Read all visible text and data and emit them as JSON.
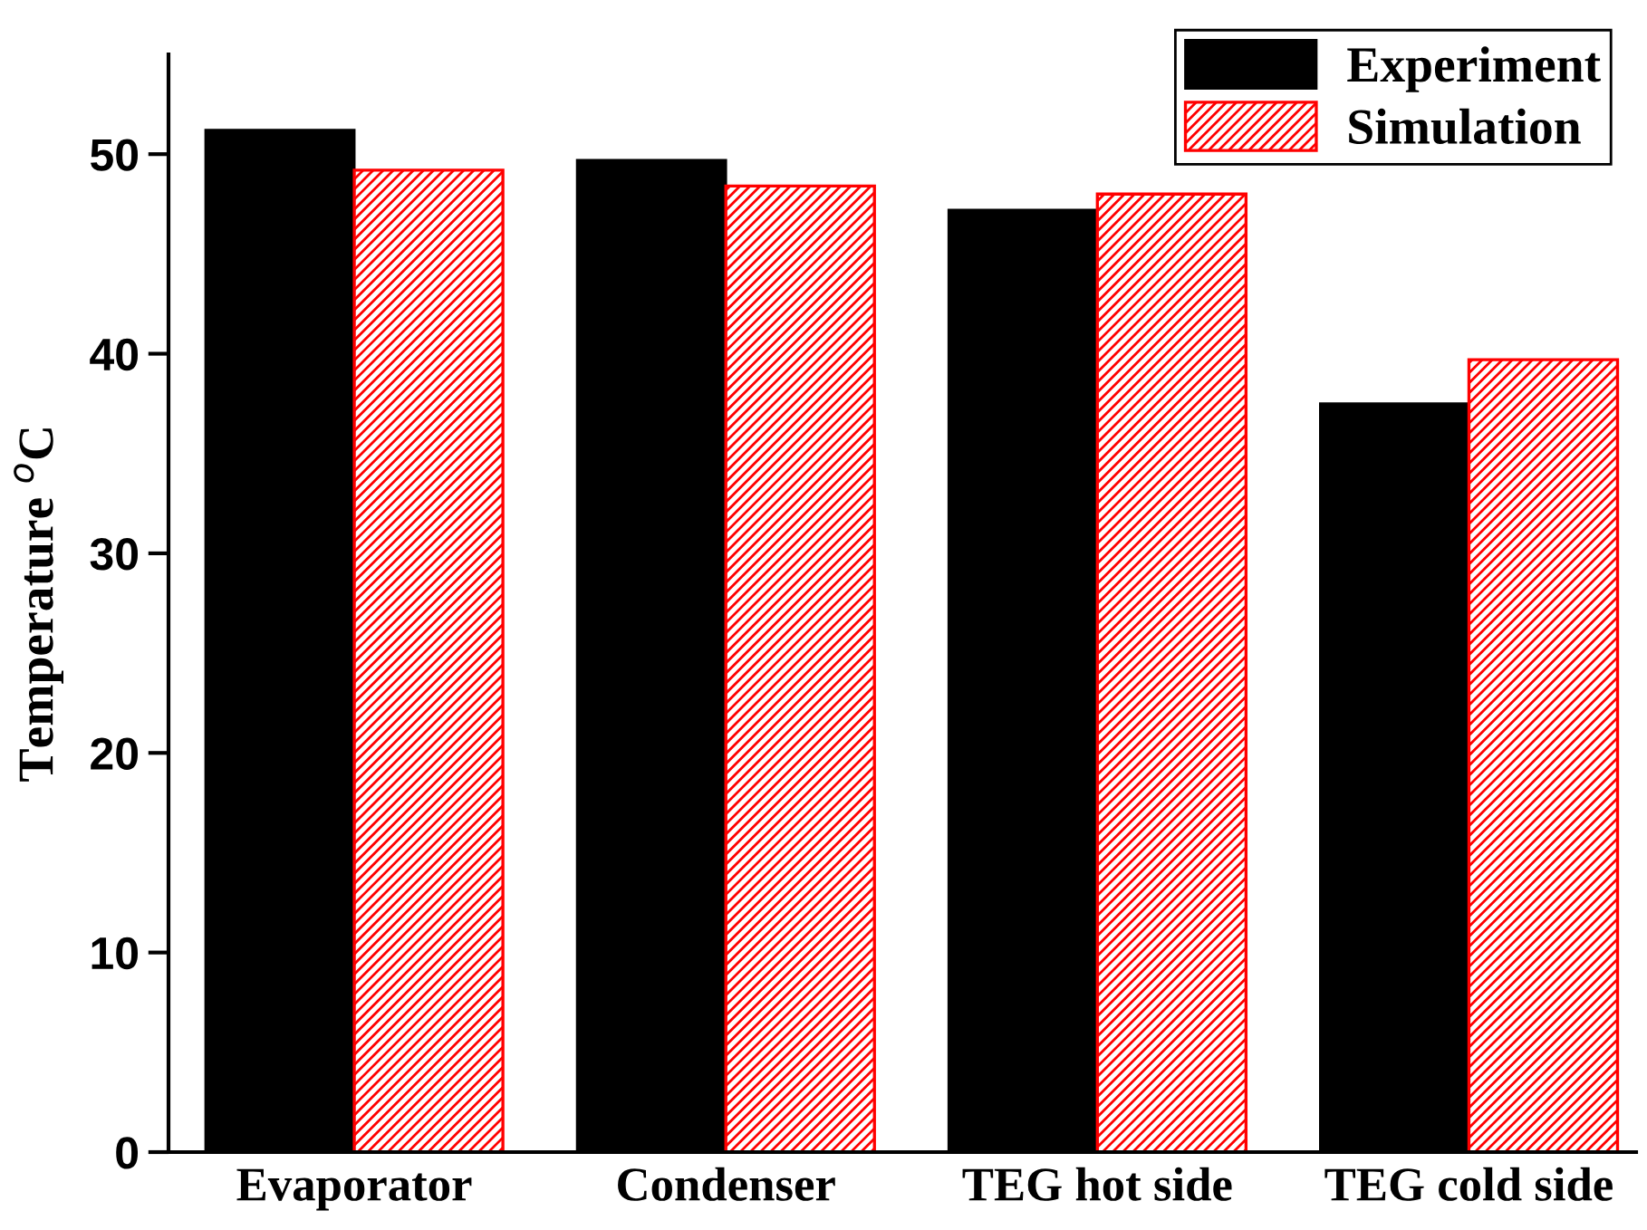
{
  "chart_data": {
    "type": "bar",
    "ylabel": "Temperature $^{o}$C",
    "categories": [
      "Evaporator",
      "Condenser",
      "TEG hot side",
      "TEG cold side"
    ],
    "series": [
      {
        "name": "Experiment",
        "color": "#000000",
        "values": [
          51.2,
          49.7,
          47.2,
          37.5
        ]
      },
      {
        "name": "Simulation",
        "color": "#ff0000",
        "values": [
          49.2,
          48.4,
          48.0,
          39.7
        ]
      }
    ],
    "ylim": [
      0,
      55
    ],
    "yticks": [
      0,
      10,
      20,
      30,
      40,
      50
    ],
    "grid": false,
    "legend": "top right"
  }
}
